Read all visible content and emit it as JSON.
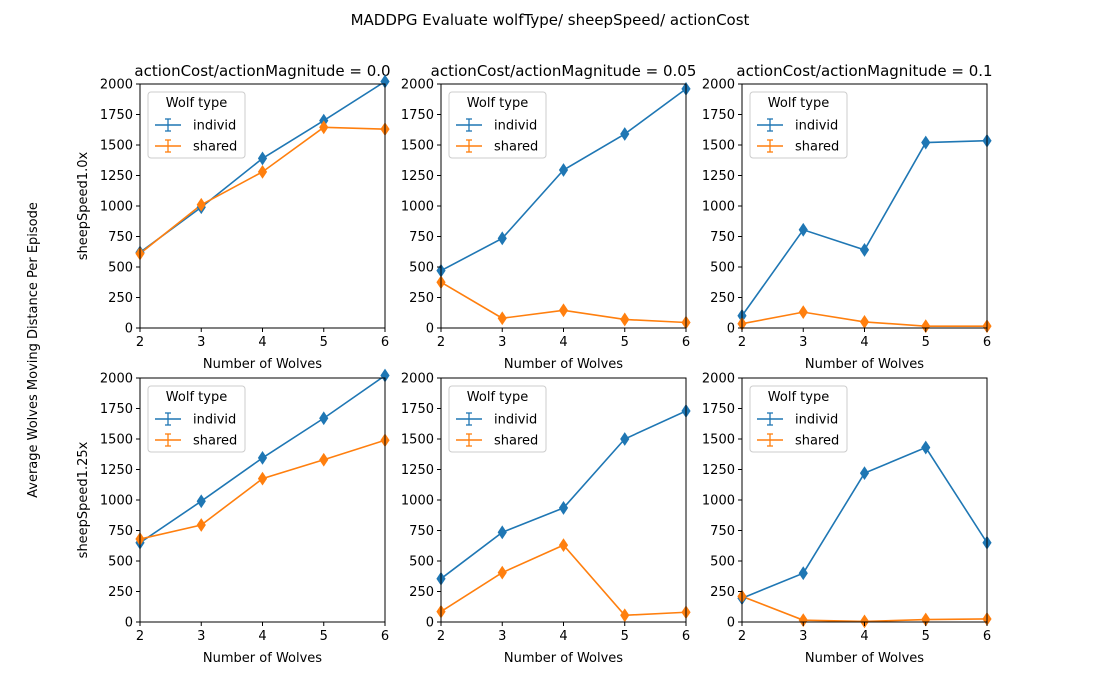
{
  "figure": {
    "suptitle": "MADDPG Evaluate wolfType/ sheepSpeed/ actionCost",
    "ylabel": "Average Wolves Moving Distance Per Episode"
  },
  "colors": {
    "individ": "#1f77b4",
    "shared": "#ff7f0e"
  },
  "chart_data": [
    {
      "type": "line",
      "title": "actionCost/actionMagnitude = 0.0",
      "xlabel": "Number of Wolves",
      "ylabel": "sheepSpeed1.0x",
      "x": [
        2,
        3,
        4,
        5,
        6
      ],
      "xlim": [
        2,
        6
      ],
      "ylim": [
        0,
        2000
      ],
      "xticks": [
        "2",
        "3",
        "4",
        "5",
        "6"
      ],
      "yticks": [
        "0",
        "250",
        "500",
        "750",
        "1000",
        "1250",
        "1500",
        "1750",
        "2000"
      ],
      "legend": {
        "title": "Wolf type",
        "placement": "upper-left"
      },
      "series": [
        {
          "name": "individ",
          "values": [
            620,
            990,
            1390,
            1700,
            2020
          ]
        },
        {
          "name": "shared",
          "values": [
            610,
            1010,
            1280,
            1645,
            1630
          ]
        }
      ]
    },
    {
      "type": "line",
      "title": "actionCost/actionMagnitude = 0.05",
      "xlabel": "Number of Wolves",
      "ylabel": "",
      "x": [
        2,
        3,
        4,
        5,
        6
      ],
      "xlim": [
        2,
        6
      ],
      "ylim": [
        0,
        2000
      ],
      "xticks": [
        "2",
        "3",
        "4",
        "5",
        "6"
      ],
      "yticks": [
        "0",
        "250",
        "500",
        "750",
        "1000",
        "1250",
        "1500",
        "1750",
        "2000"
      ],
      "legend": {
        "title": "Wolf type",
        "placement": "upper-left"
      },
      "series": [
        {
          "name": "individ",
          "values": [
            470,
            735,
            1295,
            1590,
            1960
          ]
        },
        {
          "name": "shared",
          "values": [
            375,
            80,
            145,
            70,
            45
          ]
        }
      ]
    },
    {
      "type": "line",
      "title": "actionCost/actionMagnitude = 0.1",
      "xlabel": "Number of Wolves",
      "ylabel": "",
      "x": [
        2,
        3,
        4,
        5,
        6
      ],
      "xlim": [
        2,
        6
      ],
      "ylim": [
        0,
        2000
      ],
      "xticks": [
        "2",
        "3",
        "4",
        "5",
        "6"
      ],
      "yticks": [
        "0",
        "250",
        "500",
        "750",
        "1000",
        "1250",
        "1500",
        "1750",
        "2000"
      ],
      "legend": {
        "title": "Wolf type",
        "placement": "upper-left"
      },
      "series": [
        {
          "name": "individ",
          "values": [
            100,
            805,
            640,
            1520,
            1535
          ]
        },
        {
          "name": "shared",
          "values": [
            35,
            130,
            50,
            15,
            15
          ]
        }
      ]
    },
    {
      "type": "line",
      "title": "",
      "xlabel": "Number of Wolves",
      "ylabel": "sheepSpeed1.25x",
      "x": [
        2,
        3,
        4,
        5,
        6
      ],
      "xlim": [
        2,
        6
      ],
      "ylim": [
        0,
        2000
      ],
      "xticks": [
        "2",
        "3",
        "4",
        "5",
        "6"
      ],
      "yticks": [
        "0",
        "250",
        "500",
        "750",
        "1000",
        "1250",
        "1500",
        "1750",
        "2000"
      ],
      "legend": {
        "title": "Wolf type",
        "placement": "upper-left"
      },
      "series": [
        {
          "name": "individ",
          "values": [
            650,
            990,
            1345,
            1670,
            2020
          ]
        },
        {
          "name": "shared",
          "values": [
            680,
            795,
            1175,
            1330,
            1490
          ]
        }
      ]
    },
    {
      "type": "line",
      "title": "",
      "xlabel": "Number of Wolves",
      "ylabel": "",
      "x": [
        2,
        3,
        4,
        5,
        6
      ],
      "xlim": [
        2,
        6
      ],
      "ylim": [
        0,
        2000
      ],
      "xticks": [
        "2",
        "3",
        "4",
        "5",
        "6"
      ],
      "yticks": [
        "0",
        "250",
        "500",
        "750",
        "1000",
        "1250",
        "1500",
        "1750",
        "2000"
      ],
      "legend": {
        "title": "Wolf type",
        "placement": "upper-left"
      },
      "series": [
        {
          "name": "individ",
          "values": [
            355,
            735,
            935,
            1500,
            1730
          ]
        },
        {
          "name": "shared",
          "values": [
            85,
            405,
            630,
            55,
            80
          ]
        }
      ]
    },
    {
      "type": "line",
      "title": "",
      "xlabel": "Number of Wolves",
      "ylabel": "",
      "x": [
        2,
        3,
        4,
        5,
        6
      ],
      "xlim": [
        2,
        6
      ],
      "ylim": [
        0,
        2000
      ],
      "xticks": [
        "2",
        "3",
        "4",
        "5",
        "6"
      ],
      "yticks": [
        "0",
        "250",
        "500",
        "750",
        "1000",
        "1250",
        "1500",
        "1750",
        "2000"
      ],
      "legend": {
        "title": "Wolf type",
        "placement": "upper-left"
      },
      "series": [
        {
          "name": "individ",
          "values": [
            195,
            400,
            1220,
            1430,
            650
          ]
        },
        {
          "name": "shared",
          "values": [
            210,
            15,
            5,
            20,
            25
          ]
        }
      ]
    }
  ]
}
